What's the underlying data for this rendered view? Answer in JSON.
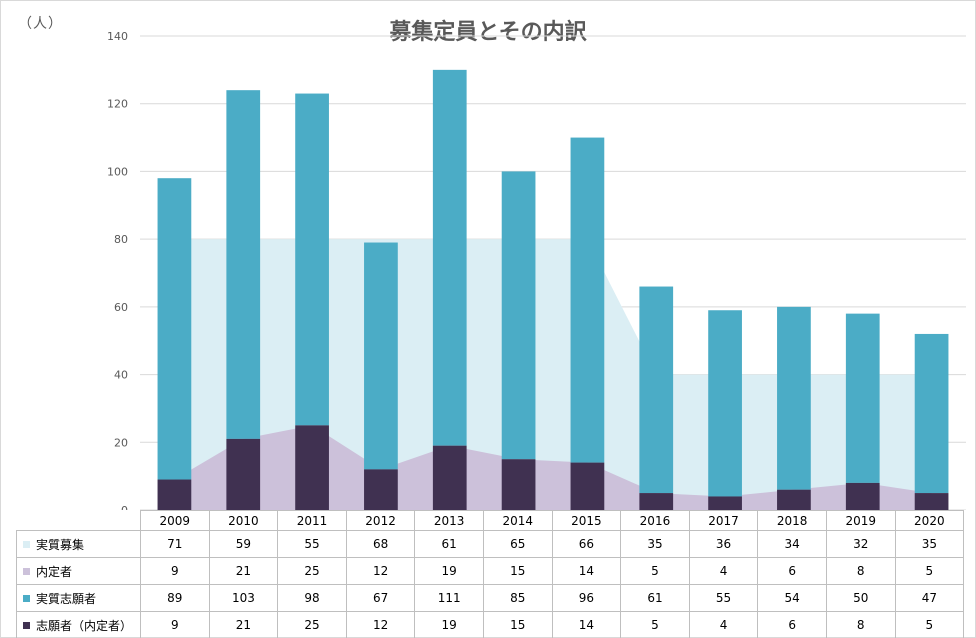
{
  "chart_data": {
    "type": "bar",
    "title": "募集定員とその内訳",
    "unit_label": "（人）",
    "ylim": [
      0,
      140
    ],
    "yticks": [
      0,
      20,
      40,
      60,
      80,
      100,
      120,
      140
    ],
    "grid": true,
    "categories": [
      "2009",
      "2010",
      "2011",
      "2012",
      "2013",
      "2014",
      "2015",
      "2016",
      "2017",
      "2018",
      "2019",
      "2020"
    ],
    "series": [
      {
        "name": "実質募集",
        "render": "area-stacked",
        "color": "#dbeef4",
        "values": [
          71,
          59,
          55,
          68,
          61,
          65,
          66,
          35,
          36,
          34,
          32,
          35
        ]
      },
      {
        "name": "内定者",
        "render": "area-stacked",
        "color": "#ccc1da",
        "values": [
          9,
          21,
          25,
          12,
          19,
          15,
          14,
          5,
          4,
          6,
          8,
          5
        ]
      },
      {
        "name": "実質志願者",
        "render": "bar-stacked",
        "color": "#4bacc6",
        "values": [
          89,
          103,
          98,
          67,
          111,
          85,
          96,
          61,
          55,
          54,
          50,
          47
        ]
      },
      {
        "name": "志願者（内定者）",
        "render": "bar-stacked",
        "color": "#403151",
        "values": [
          9,
          21,
          25,
          12,
          19,
          15,
          14,
          5,
          4,
          6,
          8,
          5
        ]
      }
    ]
  }
}
